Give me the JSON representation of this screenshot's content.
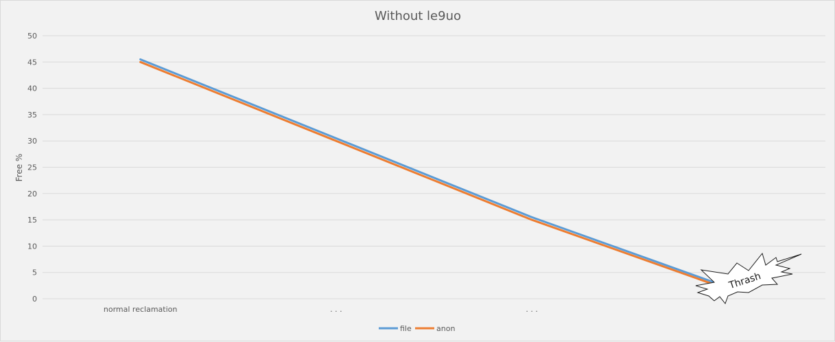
{
  "chart_data": {
    "type": "line",
    "title": "Without le9uo",
    "xlabel": "",
    "ylabel": "Free %",
    "categories": [
      "normal reclamation",
      ". . .",
      ". . .",
      ""
    ],
    "series": [
      {
        "name": "file",
        "color": "#5b9bd5",
        "values": [
          45.5,
          30.5,
          15.5,
          2.2
        ]
      },
      {
        "name": "anon",
        "color": "#ed7d31",
        "values": [
          45.0,
          30.0,
          15.0,
          1.8
        ]
      }
    ],
    "ylim": [
      0,
      50
    ],
    "yticks": [
      0,
      5,
      10,
      15,
      20,
      25,
      30,
      35,
      40,
      45,
      50
    ],
    "grid": true,
    "legend_position": "bottom",
    "annotation": {
      "text": "Thrash",
      "shape": "explosion-burst"
    }
  }
}
